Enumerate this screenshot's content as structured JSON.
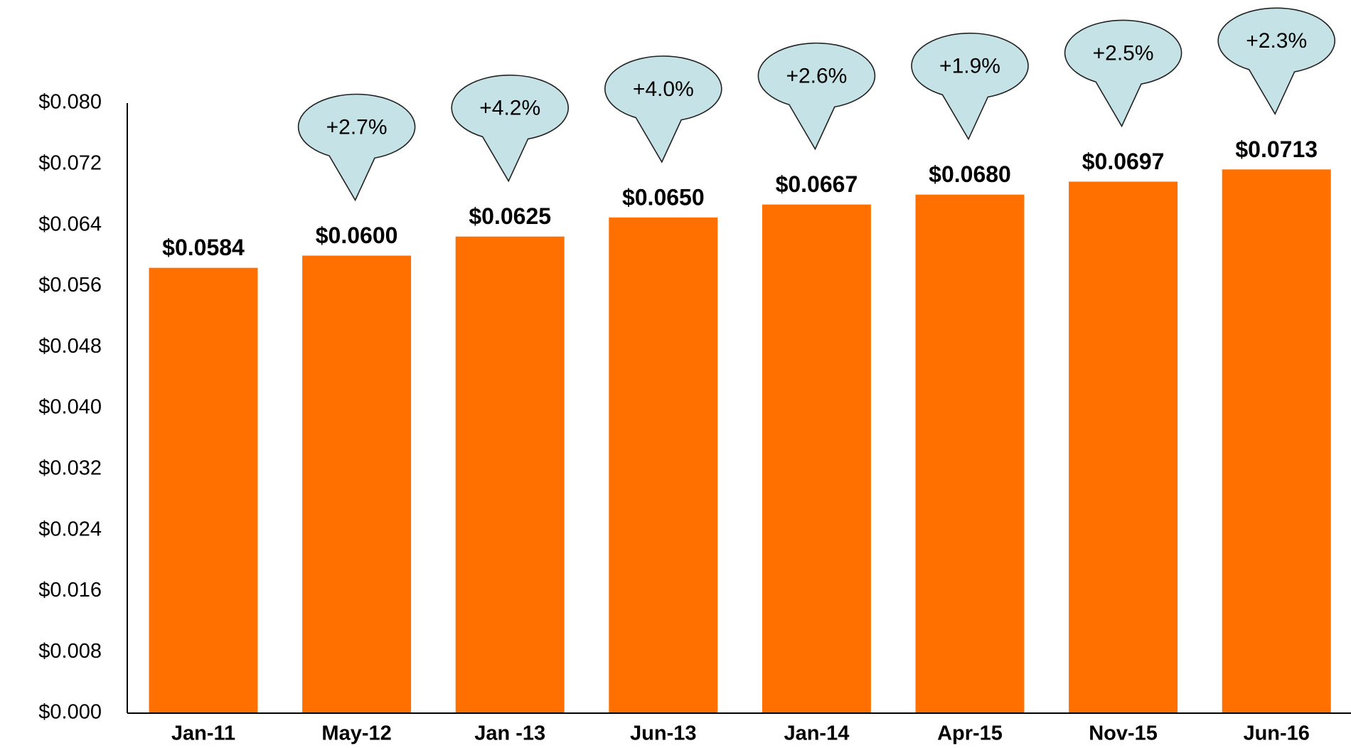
{
  "chart_data": {
    "type": "bar",
    "categories": [
      "Jan-11",
      "May-12",
      "Jan -13",
      "Jun-13",
      "Jan-14",
      "Apr-15",
      "Nov-15",
      "Jun-16"
    ],
    "values": [
      0.0584,
      0.06,
      0.0625,
      0.065,
      0.0667,
      0.068,
      0.0697,
      0.0713
    ],
    "value_labels": [
      "$0.0584",
      "$0.0600",
      "$0.0625",
      "$0.0650",
      "$0.0667",
      "$0.0680",
      "$0.0697",
      "$0.0713"
    ],
    "annotations": [
      null,
      "+2.7%",
      "+4.2%",
      "+4.0%",
      "+2.6%",
      "+1.9%",
      "+2.5%",
      "+2.3%"
    ],
    "color": "#ff7000",
    "annotation_color": "#c5e3e6",
    "ylim": [
      0,
      0.08
    ],
    "yticks": [
      {
        "value": 0,
        "label": "$0.000"
      },
      {
        "value": 0.008,
        "label": "$0.008"
      },
      {
        "value": 0.016,
        "label": "$0.016"
      },
      {
        "value": 0.024,
        "label": "$0.024"
      },
      {
        "value": 0.032,
        "label": "$0.032"
      },
      {
        "value": 0.04,
        "label": "$0.040"
      },
      {
        "value": 0.048,
        "label": "$0.048"
      },
      {
        "value": 0.056,
        "label": "$0.056"
      },
      {
        "value": 0.064,
        "label": "$0.064"
      },
      {
        "value": 0.072,
        "label": "$0.072"
      },
      {
        "value": 0.08,
        "label": "$0.080"
      }
    ],
    "grid": false
  }
}
